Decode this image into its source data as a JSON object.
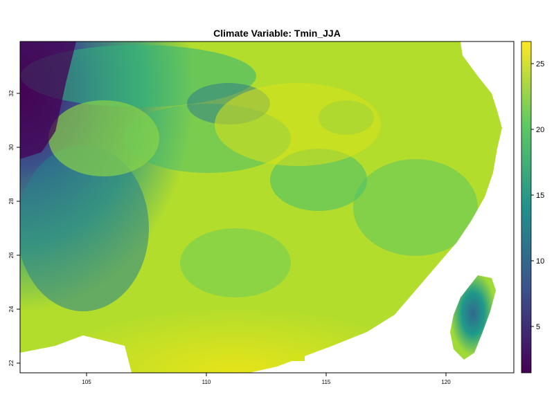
{
  "title": "Climate Variable: Tmin_JJA",
  "map": {
    "variable": "Tmin_JJA",
    "x_ticks": [
      "105",
      "110",
      "115",
      "120"
    ],
    "y_ticks": [
      "22",
      "24",
      "26",
      "28",
      "30",
      "32"
    ],
    "colorbar_ticks": [
      "5",
      "10",
      "15",
      "20",
      "25"
    ],
    "colormap": [
      "#440154",
      "#3b528b",
      "#21918c",
      "#5ec962",
      "#fde725"
    ],
    "value_range": [
      1.5,
      26.8
    ]
  }
}
